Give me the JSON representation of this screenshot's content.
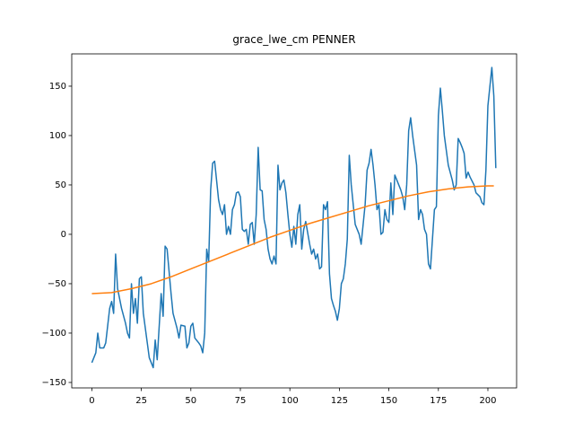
{
  "chart_data": {
    "type": "line",
    "title": "grace_lwe_cm PENNER",
    "xlim": [
      -10.15,
      214.5
    ],
    "ylim": [
      -155.5,
      182.7
    ],
    "xticks": [
      0,
      25,
      50,
      75,
      100,
      125,
      150,
      175,
      200
    ],
    "yticks": [
      {
        "value": -150,
        "label": "−150"
      },
      {
        "value": -100,
        "label": "−100"
      },
      {
        "value": -50,
        "label": "−50"
      },
      0,
      50,
      100,
      150
    ],
    "series": [
      {
        "color": "#1f77b4",
        "x": [
          0,
          2,
          3,
          4,
          6,
          7,
          9,
          10,
          11,
          12,
          13,
          15,
          17,
          18,
          19,
          20,
          21,
          22,
          23,
          24,
          25,
          26,
          28,
          29,
          30,
          31,
          32,
          33,
          35,
          36,
          37,
          38,
          40,
          41,
          43,
          44,
          45,
          47,
          48,
          49,
          50,
          51,
          52,
          54,
          55,
          56,
          57,
          58,
          59,
          60,
          61,
          62,
          64,
          65,
          66,
          67,
          68,
          69,
          70,
          71,
          72,
          73,
          74,
          75,
          76,
          77,
          78,
          79,
          80,
          81,
          82,
          83,
          84,
          85,
          86,
          87,
          88,
          89,
          90,
          91,
          92,
          93,
          94,
          95,
          96,
          97,
          98,
          99,
          100,
          101,
          102,
          103,
          104,
          105,
          106,
          107,
          108,
          110,
          111,
          112,
          113,
          114,
          115,
          116,
          117,
          118,
          119,
          120,
          121,
          122,
          123,
          124,
          125,
          126,
          127,
          128,
          129,
          130,
          131,
          132,
          133,
          134,
          135,
          136,
          137,
          138,
          139,
          140,
          141,
          142,
          143,
          144,
          145,
          146,
          147,
          148,
          149,
          150,
          151,
          152,
          153,
          155,
          156,
          157,
          158,
          159,
          160,
          161,
          162,
          164,
          165,
          166,
          167,
          168,
          169,
          170,
          171,
          173,
          174,
          175,
          176,
          177,
          178,
          179,
          180,
          182,
          183,
          184,
          185,
          186,
          187,
          188,
          189,
          190,
          191,
          193,
          194,
          195,
          196,
          197,
          198,
          199,
          200,
          202,
          203,
          204
        ],
        "values": [
          -130,
          -120,
          -100,
          -115,
          -115,
          -110,
          -75,
          -68,
          -80,
          -20,
          -55,
          -75,
          -90,
          -100,
          -105,
          -50,
          -80,
          -65,
          -90,
          -45,
          -43,
          -80,
          -110,
          -125,
          -130,
          -135,
          -107,
          -127,
          -60,
          -83,
          -12,
          -15,
          -60,
          -80,
          -95,
          -105,
          -92,
          -93,
          -115,
          -110,
          -93,
          -90,
          -105,
          -110,
          -113,
          -120,
          -100,
          -15,
          -28,
          45,
          72,
          74,
          35,
          25,
          20,
          30,
          0,
          8,
          0,
          25,
          30,
          42,
          43,
          38,
          5,
          3,
          5,
          -10,
          10,
          12,
          -10,
          20,
          88,
          45,
          44,
          15,
          5,
          -15,
          -25,
          -30,
          -22,
          -30,
          70,
          45,
          52,
          55,
          42,
          20,
          0,
          -13,
          8,
          -10,
          20,
          30,
          -15,
          5,
          13,
          -10,
          -20,
          -15,
          -25,
          -20,
          -35,
          -33,
          30,
          25,
          33,
          -40,
          -65,
          -72,
          -78,
          -87,
          -75,
          -50,
          -45,
          -30,
          -5,
          80,
          50,
          30,
          10,
          5,
          0,
          -10,
          10,
          30,
          65,
          72,
          86,
          70,
          50,
          25,
          30,
          0,
          2,
          25,
          15,
          12,
          52,
          20,
          60,
          50,
          45,
          38,
          25,
          50,
          105,
          118,
          100,
          70,
          15,
          25,
          20,
          5,
          0,
          -30,
          -35,
          25,
          28,
          120,
          148,
          125,
          100,
          85,
          70,
          55,
          45,
          50,
          97,
          93,
          88,
          82,
          57,
          63,
          58,
          50,
          42,
          40,
          38,
          32,
          30,
          65,
          130,
          169,
          140,
          67
        ]
      },
      {
        "color": "#ff7f0e",
        "x": [
          0,
          10,
          20,
          30,
          40,
          50,
          60,
          70,
          80,
          90,
          100,
          110,
          120,
          130,
          140,
          150,
          160,
          170,
          180,
          190,
          200,
          203
        ],
        "values": [
          -60,
          -59,
          -55,
          -50,
          -43,
          -35,
          -27,
          -19,
          -11,
          -3,
          4,
          11,
          17,
          23,
          29,
          34,
          39,
          43,
          46,
          48,
          49,
          49
        ]
      }
    ]
  }
}
